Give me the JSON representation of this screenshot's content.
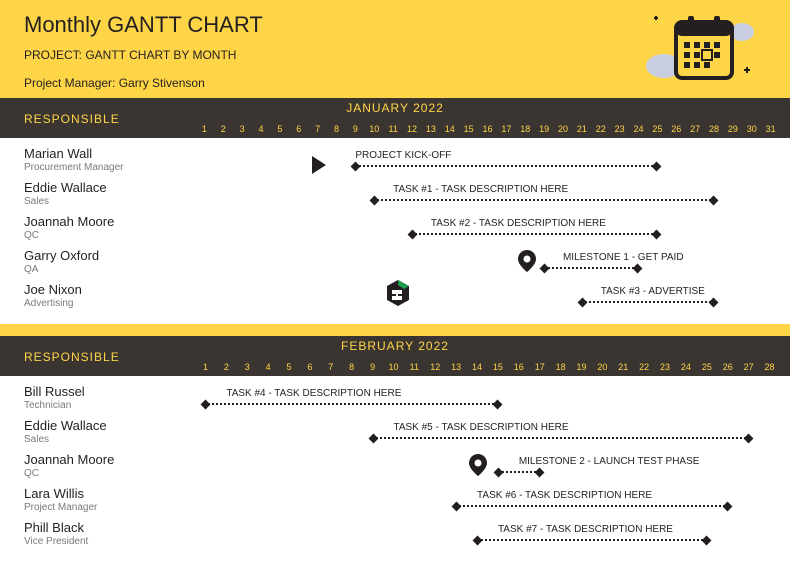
{
  "header": {
    "title": "Monthly GANTT CHART",
    "project_label": "PROJECT: GANTT CHART BY MONTH",
    "manager_label": "Project Manager: Garry Stivenson",
    "bg_color": "#ffd548",
    "text_color": "#231f20"
  },
  "theme": {
    "month_bar_bg": "#3a3530",
    "month_bar_fg": "#ffd548",
    "row_bg": "#ffffff",
    "bar_color": "#231f20",
    "role_color": "#7a7a7a",
    "accent_green": "#1a9e4b"
  },
  "months": [
    {
      "id": "jan",
      "title": "JANUARY 2022",
      "responsible_label": "RESPONSIBLE",
      "days": 31,
      "rows": [
        {
          "name": "Marian Wall",
          "role": "Procurement Manager",
          "kickoff_day": 7,
          "bar": {
            "start": 9,
            "end": 25,
            "label": "PROJECT KICK-OFF",
            "label_offset": 9
          }
        },
        {
          "name": "Eddie Wallace",
          "role": "Sales",
          "bar": {
            "start": 10,
            "end": 28,
            "label": "TASK #1 - TASK DESCRIPTION HERE",
            "label_offset": 11
          }
        },
        {
          "name": "Joannah Moore",
          "role": "QC",
          "bar": {
            "start": 12,
            "end": 25,
            "label": "TASK #2 - TASK DESCRIPTION HERE",
            "label_offset": 13
          }
        },
        {
          "name": "Garry Oxford",
          "role": "QA",
          "pin_day": 18,
          "bar": {
            "start": 19,
            "end": 24,
            "label": "MILESTONE 1 - GET PAID",
            "label_offset": 20
          }
        },
        {
          "name": "Joe Nixon",
          "role": "Advertising",
          "logo_day": 11,
          "bar": {
            "start": 21,
            "end": 28,
            "label": "TASK #3 - ADVERTISE",
            "label_offset": 22
          }
        }
      ]
    },
    {
      "id": "feb",
      "title": "FEBRUARY 2022",
      "responsible_label": "RESPONSIBLE",
      "days": 28,
      "rows": [
        {
          "name": "Bill Russel",
          "role": "Technician",
          "bar": {
            "start": 1,
            "end": 15,
            "label": "TASK #4 - TASK DESCRIPTION HERE",
            "label_offset": 2
          }
        },
        {
          "name": "Eddie Wallace",
          "role": "Sales",
          "bar": {
            "start": 9,
            "end": 27,
            "label": "TASK #5 - TASK DESCRIPTION HERE",
            "label_offset": 10
          }
        },
        {
          "name": "Joannah Moore",
          "role": "QC",
          "pin_day": 14,
          "bar": {
            "start": 15,
            "end": 17,
            "label": "MILESTONE 2 - LAUNCH TEST PHASE",
            "label_offset": 16
          }
        },
        {
          "name": "Lara Willis",
          "role": "Project Manager",
          "bar": {
            "start": 13,
            "end": 26,
            "label": "TASK #6 - TASK DESCRIPTION HERE",
            "label_offset": 14
          }
        },
        {
          "name": "Phill Black",
          "role": "Vice President",
          "bar": {
            "start": 14,
            "end": 25,
            "label": "TASK #7 - TASK DESCRIPTION HERE",
            "label_offset": 15
          }
        }
      ]
    }
  ]
}
